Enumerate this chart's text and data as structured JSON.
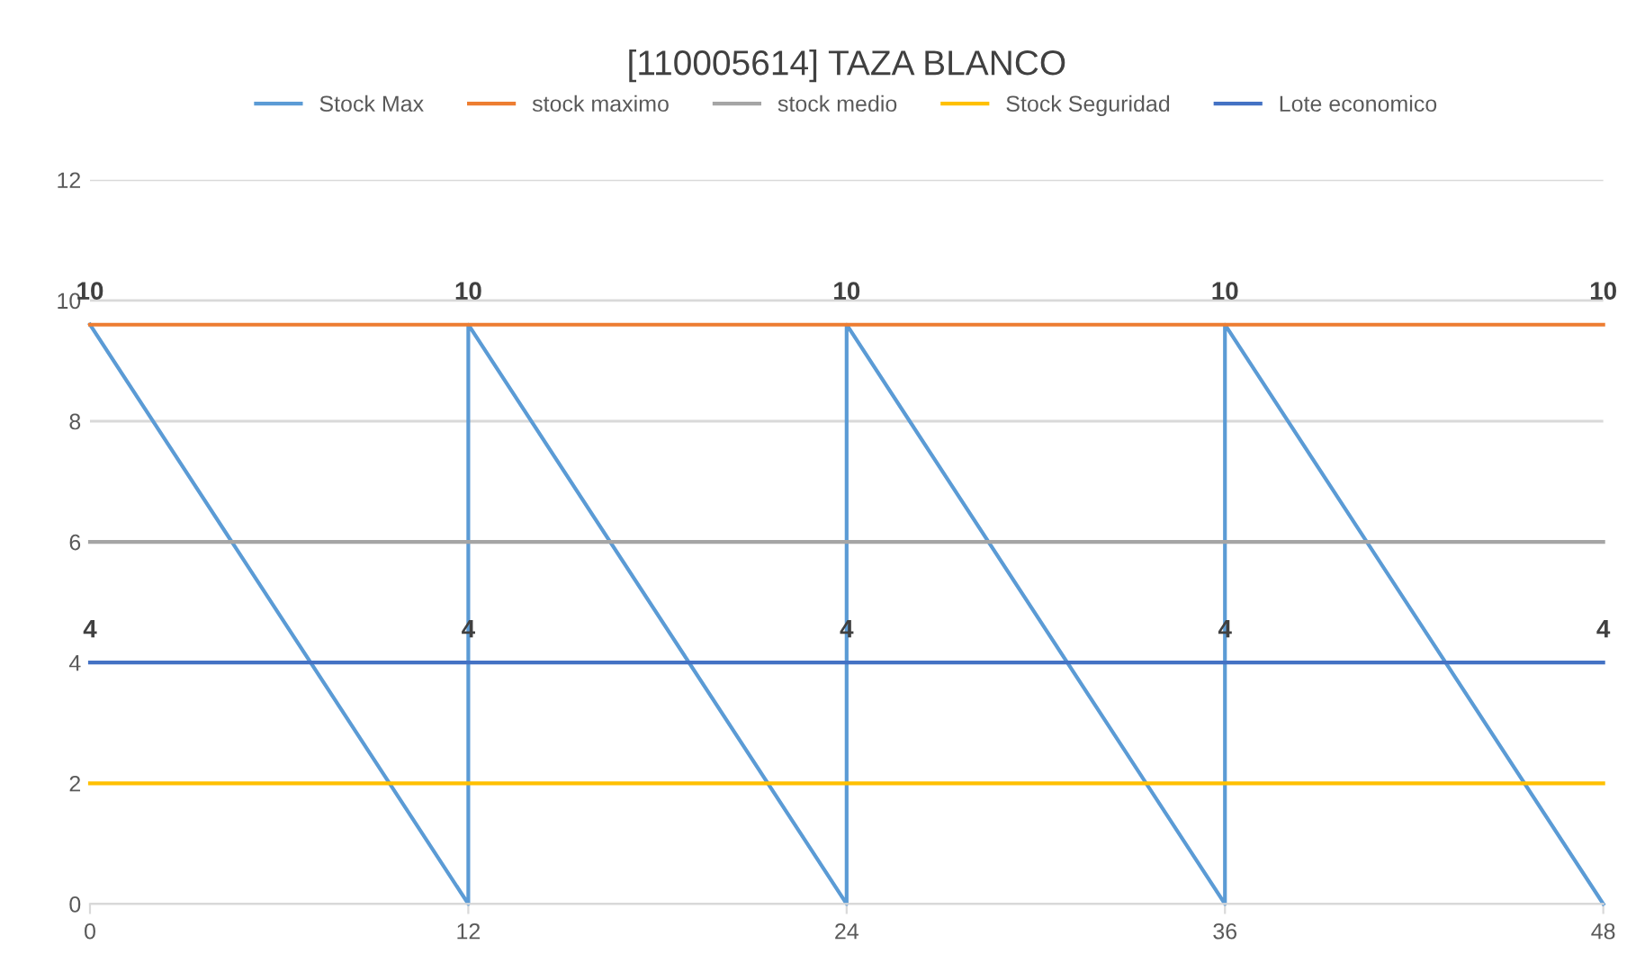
{
  "chart_data": {
    "type": "line",
    "title": "[110005614] TAZA BLANCO",
    "x": [
      0,
      12,
      24,
      36,
      48
    ],
    "series": [
      {
        "name": "Stock Max",
        "color": "#5b9bd5",
        "x": [
          0,
          12,
          12,
          24,
          24,
          36,
          36,
          48
        ],
        "values": [
          9.6,
          0,
          9.6,
          0,
          9.6,
          0,
          9.6,
          0
        ]
      },
      {
        "name": "stock maximo",
        "color": "#ed7d31",
        "values": [
          9.6,
          9.6,
          9.6,
          9.6,
          9.6
        ],
        "value_labels": [
          "10",
          "10",
          "10",
          "10",
          "10"
        ]
      },
      {
        "name": "stock medio",
        "color": "#a5a5a5",
        "values": [
          6,
          6,
          6,
          6,
          6
        ]
      },
      {
        "name": "Stock Seguridad",
        "color": "#ffc000",
        "values": [
          2,
          2,
          2,
          2,
          2
        ]
      },
      {
        "name": "Lote economico",
        "color": "#4472c4",
        "values": [
          4,
          4,
          4,
          4,
          4
        ],
        "value_labels": [
          "4",
          "4",
          "4",
          "4",
          "4"
        ]
      }
    ],
    "xlim": [
      0,
      48
    ],
    "xticks": [
      0,
      12,
      24,
      36,
      48
    ],
    "ylim": [
      0,
      12
    ],
    "yticks": [
      0,
      2,
      4,
      6,
      8,
      10,
      12
    ],
    "grid": "y",
    "legend": "top",
    "marker": "none",
    "line_style": "solid"
  }
}
